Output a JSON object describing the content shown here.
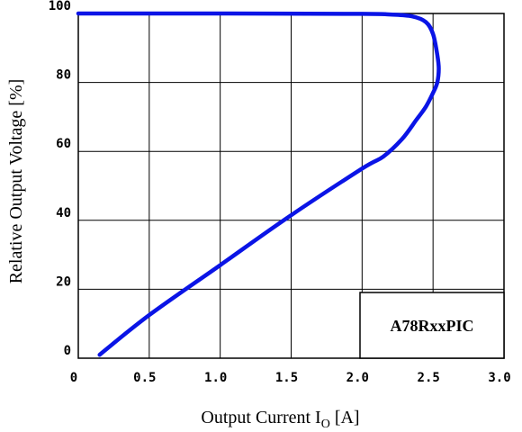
{
  "chart_data": {
    "type": "line",
    "xlabel_main": "Output Current I",
    "xlabel_sub": "O",
    "xlabel_unit": " [A]",
    "ylabel": "Relative Output Voltage [%]",
    "xlim": [
      0,
      3.0
    ],
    "ylim": [
      0,
      100
    ],
    "x_ticks": [
      0,
      0.5,
      1.0,
      1.5,
      2.0,
      2.5,
      3.0
    ],
    "x_tick_labels": [
      "0",
      "0.5",
      "1.0",
      "1.5",
      "2.0",
      "2.5",
      "3.0"
    ],
    "y_ticks": [
      0,
      20,
      40,
      60,
      80,
      100
    ],
    "y_tick_labels": [
      "0",
      "20",
      "40",
      "60",
      "80",
      "100"
    ],
    "grid": true,
    "legend_box_label": "A78RxxPIC",
    "line_color": "#0a14e6",
    "series": [
      {
        "points": [
          [
            0,
            100
          ],
          [
            1.0,
            100
          ],
          [
            2.0,
            99.9
          ],
          [
            2.2,
            99.7
          ],
          [
            2.35,
            99.2
          ],
          [
            2.45,
            97.5
          ],
          [
            2.5,
            94
          ],
          [
            2.53,
            88
          ],
          [
            2.54,
            84
          ],
          [
            2.53,
            80
          ],
          [
            2.5,
            77
          ],
          [
            2.45,
            73
          ],
          [
            2.38,
            69
          ],
          [
            2.28,
            63.5
          ],
          [
            2.15,
            58.5
          ],
          [
            2.0,
            55
          ],
          [
            1.5,
            41.5
          ],
          [
            1.0,
            27
          ],
          [
            0.5,
            12.5
          ],
          [
            0.15,
            1
          ]
        ]
      }
    ]
  }
}
